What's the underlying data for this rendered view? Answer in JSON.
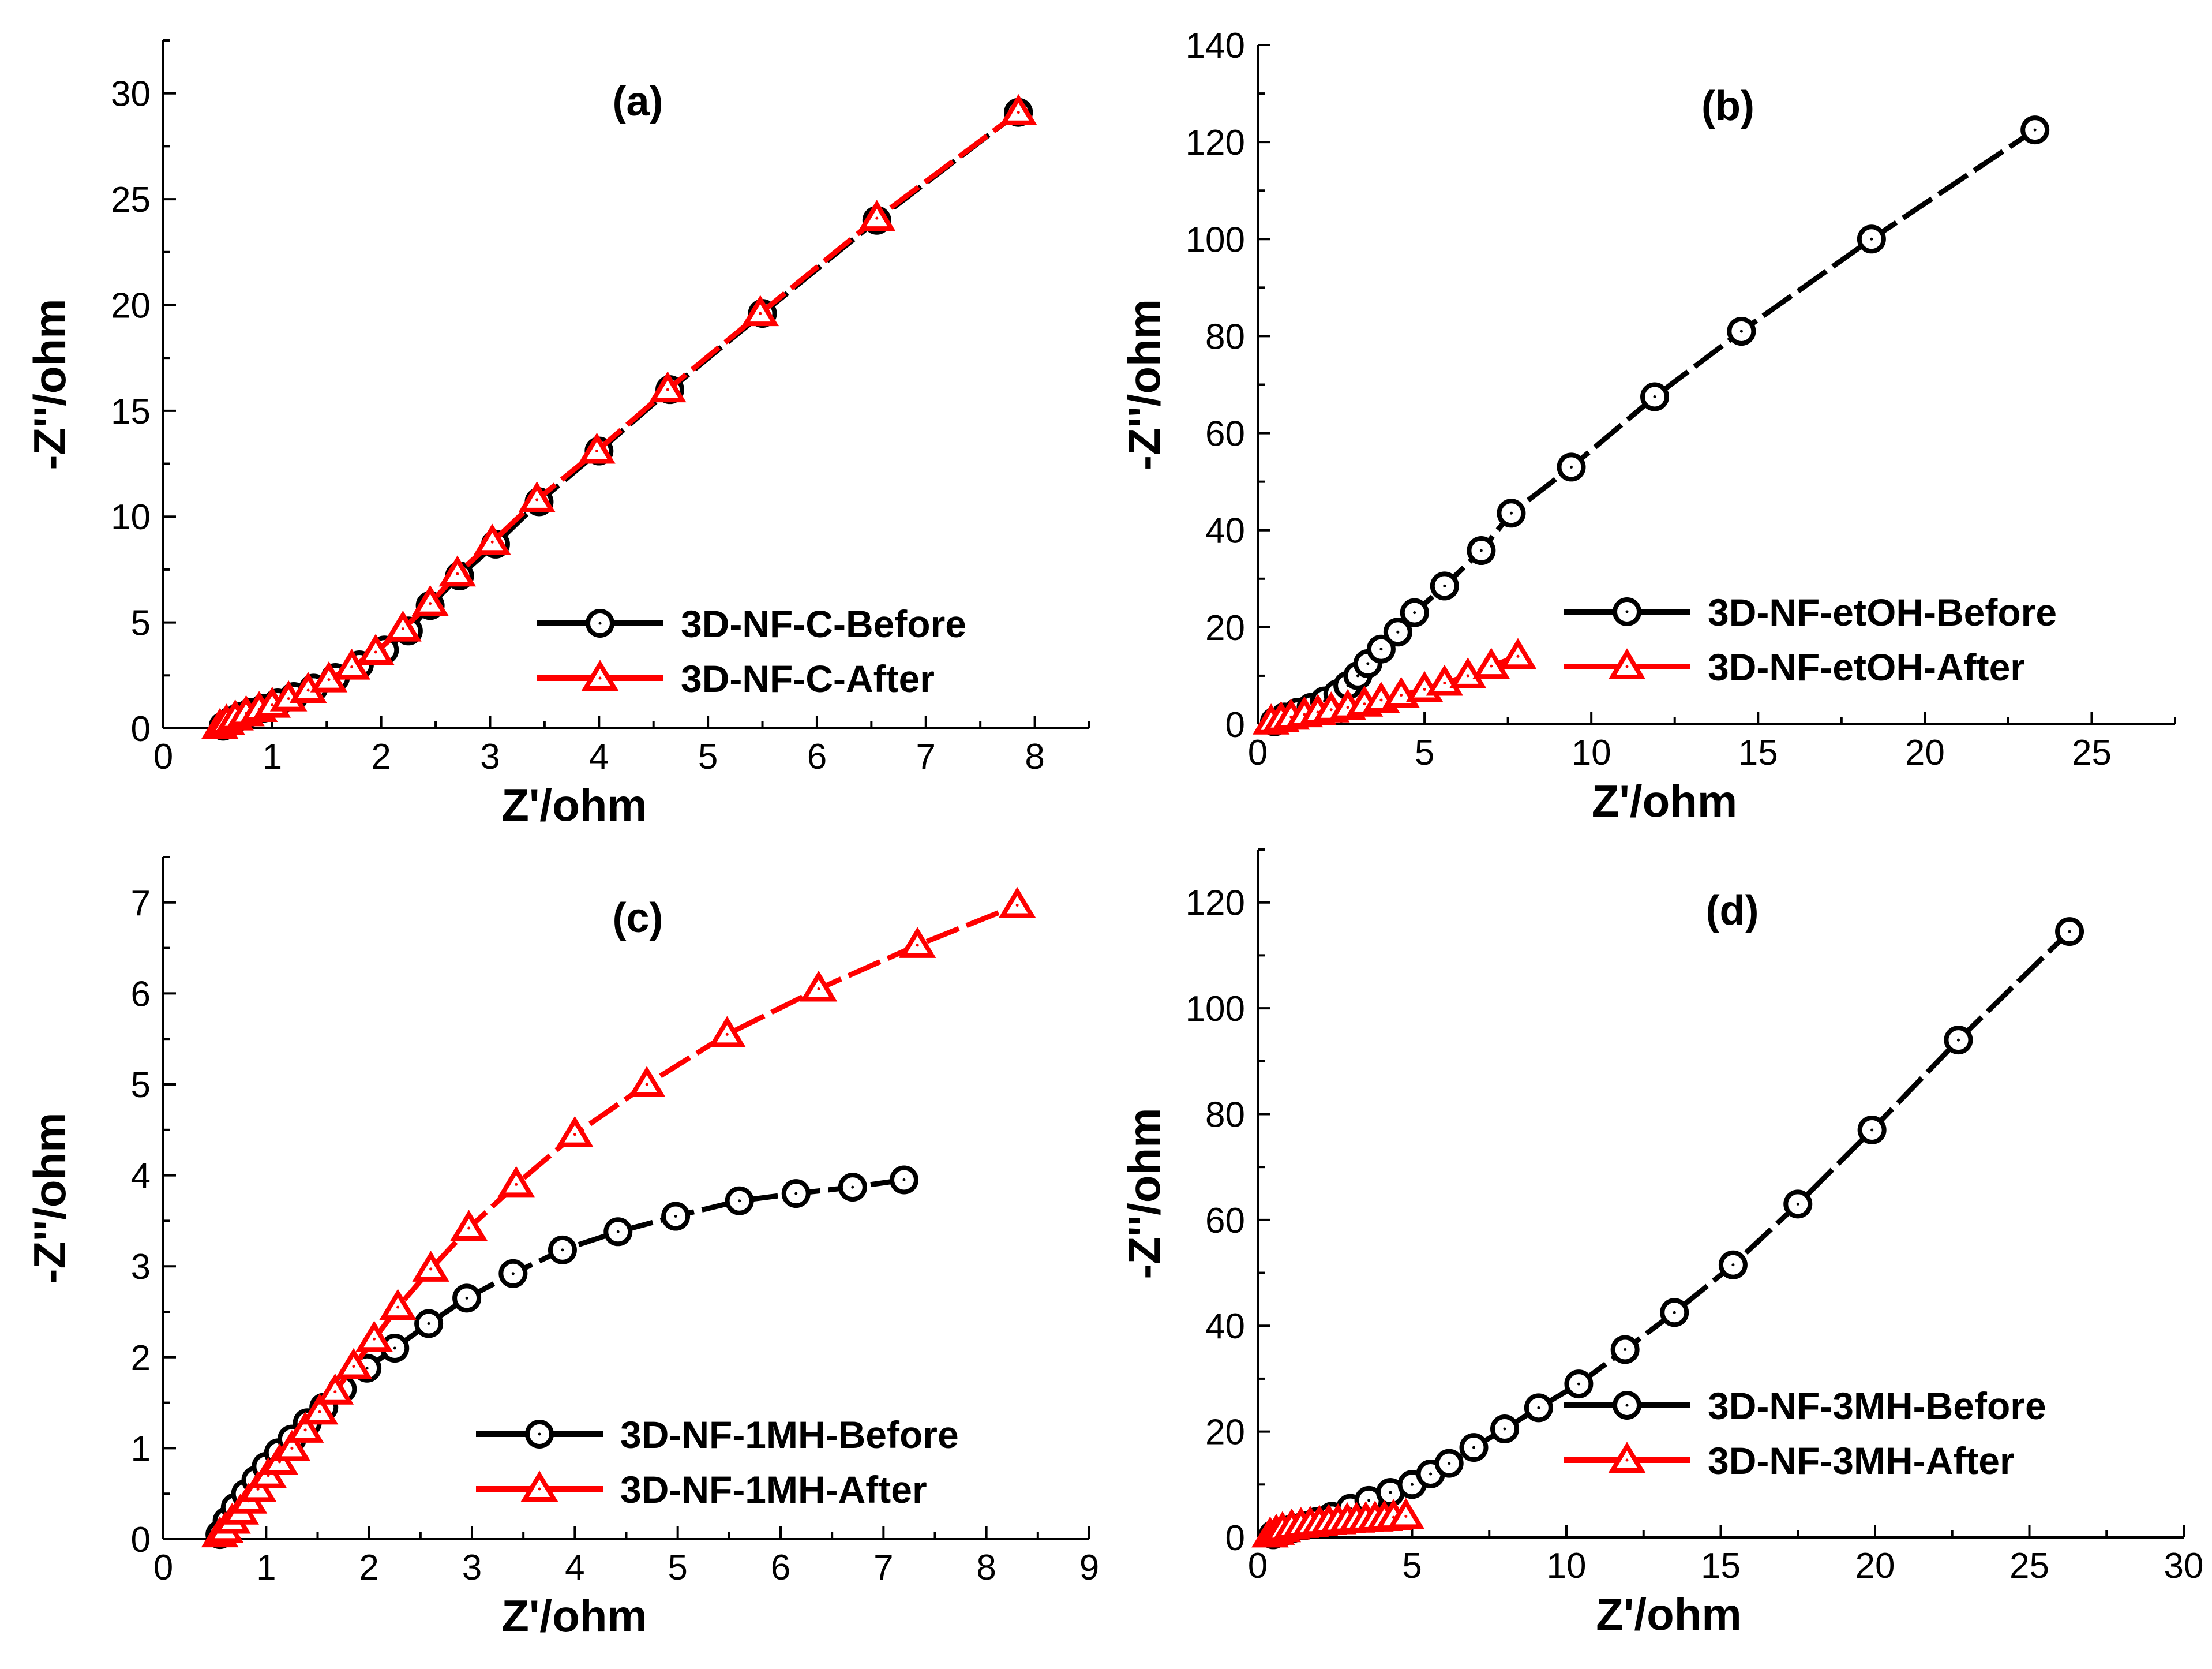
{
  "chart_data": [
    {
      "type": "line",
      "panel_label": "(a)",
      "xlabel": "Z'/ohm",
      "ylabel": "-Z''/ohm",
      "xlim": [
        0,
        8.5
      ],
      "ylim": [
        0,
        32.5
      ],
      "xticks": [
        0,
        1,
        2,
        3,
        4,
        5,
        6,
        7,
        8
      ],
      "yticks": [
        0,
        5,
        10,
        15,
        20,
        25,
        30
      ],
      "legend_position": "bottom-right",
      "series": [
        {
          "name": "3D-NF-C-Before",
          "color": "#000000",
          "marker": "circle",
          "points": [
            [
              0.55,
              0.1
            ],
            [
              0.62,
              0.35
            ],
            [
              0.7,
              0.55
            ],
            [
              0.8,
              0.75
            ],
            [
              0.92,
              0.95
            ],
            [
              1.05,
              1.2
            ],
            [
              1.2,
              1.5
            ],
            [
              1.38,
              1.9
            ],
            [
              1.58,
              2.4
            ],
            [
              1.8,
              3.0
            ],
            [
              2.03,
              3.7
            ],
            [
              2.25,
              4.6
            ],
            [
              2.45,
              5.8
            ],
            [
              2.72,
              7.2
            ],
            [
              3.05,
              8.7
            ],
            [
              3.45,
              10.7
            ],
            [
              4.0,
              13.1
            ],
            [
              4.65,
              16.0
            ],
            [
              5.5,
              19.6
            ],
            [
              6.55,
              24.0
            ],
            [
              7.85,
              29.1
            ]
          ]
        },
        {
          "name": "3D-NF-C-After",
          "color": "#ff0000",
          "marker": "triangle",
          "points": [
            [
              0.52,
              0.1
            ],
            [
              0.58,
              0.3
            ],
            [
              0.66,
              0.5
            ],
            [
              0.76,
              0.7
            ],
            [
              0.88,
              0.9
            ],
            [
              1.0,
              1.1
            ],
            [
              1.15,
              1.4
            ],
            [
              1.33,
              1.8
            ],
            [
              1.52,
              2.3
            ],
            [
              1.73,
              2.9
            ],
            [
              1.95,
              3.6
            ],
            [
              2.2,
              4.7
            ],
            [
              2.45,
              5.9
            ],
            [
              2.7,
              7.3
            ],
            [
              3.02,
              8.8
            ],
            [
              3.43,
              10.8
            ],
            [
              3.98,
              13.1
            ],
            [
              4.63,
              16.0
            ],
            [
              5.48,
              19.6
            ],
            [
              6.55,
              24.1
            ],
            [
              7.85,
              29.1
            ]
          ]
        }
      ]
    },
    {
      "type": "line",
      "panel_label": "(b)",
      "xlabel": "Z'/ohm",
      "ylabel": "-Z''/ohm",
      "xlim": [
        0,
        27.5
      ],
      "ylim": [
        0,
        140
      ],
      "xticks": [
        0,
        5,
        10,
        15,
        20,
        25
      ],
      "yticks": [
        0,
        20,
        40,
        60,
        80,
        100,
        120,
        140
      ],
      "legend_position": "bottom-right",
      "series": [
        {
          "name": "3D-NF-etOH-Before",
          "color": "#000000",
          "marker": "circle",
          "points": [
            [
              0.5,
              0.5
            ],
            [
              0.8,
              1.5
            ],
            [
              1.2,
              2.5
            ],
            [
              1.6,
              3.5
            ],
            [
              2.0,
              4.8
            ],
            [
              2.4,
              6.3
            ],
            [
              2.7,
              8.0
            ],
            [
              3.0,
              10.0
            ],
            [
              3.3,
              12.5
            ],
            [
              3.7,
              15.5
            ],
            [
              4.2,
              19.0
            ],
            [
              4.7,
              23.0
            ],
            [
              5.6,
              28.5
            ],
            [
              6.7,
              35.8
            ],
            [
              7.6,
              43.5
            ],
            [
              9.4,
              53.0
            ],
            [
              11.9,
              67.5
            ],
            [
              14.5,
              81.0
            ],
            [
              18.4,
              100.0
            ],
            [
              23.3,
              122.5
            ]
          ]
        },
        {
          "name": "3D-NF-etOH-After",
          "color": "#ff0000",
          "marker": "triangle",
          "points": [
            [
              0.4,
              0.5
            ],
            [
              0.7,
              1.0
            ],
            [
              1.0,
              1.5
            ],
            [
              1.4,
              2.0
            ],
            [
              1.8,
              2.5
            ],
            [
              2.2,
              3.0
            ],
            [
              2.7,
              3.5
            ],
            [
              3.2,
              4.2
            ],
            [
              3.7,
              5.0
            ],
            [
              4.3,
              6.0
            ],
            [
              5.0,
              7.2
            ],
            [
              5.6,
              8.5
            ],
            [
              6.3,
              10.0
            ],
            [
              7.0,
              12.0
            ],
            [
              7.8,
              14.0
            ]
          ]
        }
      ]
    },
    {
      "type": "line",
      "panel_label": "(c)",
      "xlabel": "Z'/ohm",
      "ylabel": "-Z''/ohm",
      "xlim": [
        0,
        9
      ],
      "ylim": [
        0,
        7.5
      ],
      "xticks": [
        0,
        1,
        2,
        3,
        4,
        5,
        6,
        7,
        8,
        9
      ],
      "yticks": [
        0,
        1,
        2,
        3,
        4,
        5,
        6,
        7
      ],
      "legend_position": "bottom-right",
      "series": [
        {
          "name": "3D-NF-1MH-Before",
          "color": "#000000",
          "marker": "circle",
          "points": [
            [
              0.55,
              0.05
            ],
            [
              0.62,
              0.2
            ],
            [
              0.7,
              0.35
            ],
            [
              0.8,
              0.5
            ],
            [
              0.9,
              0.65
            ],
            [
              1.0,
              0.8
            ],
            [
              1.12,
              0.95
            ],
            [
              1.25,
              1.1
            ],
            [
              1.4,
              1.28
            ],
            [
              1.56,
              1.45
            ],
            [
              1.74,
              1.65
            ],
            [
              1.98,
              1.88
            ],
            [
              2.25,
              2.1
            ],
            [
              2.58,
              2.37
            ],
            [
              2.95,
              2.65
            ],
            [
              3.4,
              2.92
            ],
            [
              3.88,
              3.18
            ],
            [
              4.42,
              3.38
            ],
            [
              4.98,
              3.55
            ],
            [
              5.6,
              3.72
            ],
            [
              6.15,
              3.8
            ],
            [
              6.7,
              3.87
            ],
            [
              7.2,
              3.95
            ]
          ]
        },
        {
          "name": "3D-NF-1MH-After",
          "color": "#ff0000",
          "marker": "triangle",
          "points": [
            [
              0.55,
              0.05
            ],
            [
              0.6,
              0.1
            ],
            [
              0.67,
              0.2
            ],
            [
              0.75,
              0.3
            ],
            [
              0.83,
              0.42
            ],
            [
              0.92,
              0.55
            ],
            [
              1.02,
              0.7
            ],
            [
              1.13,
              0.85
            ],
            [
              1.25,
              1.0
            ],
            [
              1.38,
              1.2
            ],
            [
              1.52,
              1.4
            ],
            [
              1.67,
              1.62
            ],
            [
              1.85,
              1.9
            ],
            [
              2.05,
              2.2
            ],
            [
              2.28,
              2.55
            ],
            [
              2.6,
              2.97
            ],
            [
              2.97,
              3.42
            ],
            [
              3.43,
              3.9
            ],
            [
              4.0,
              4.45
            ],
            [
              4.7,
              5.0
            ],
            [
              5.48,
              5.55
            ],
            [
              6.37,
              6.05
            ],
            [
              7.33,
              6.53
            ],
            [
              8.3,
              6.97
            ]
          ]
        }
      ]
    },
    {
      "type": "line",
      "panel_label": "(d)",
      "xlabel": "Z'/ohm",
      "ylabel": "-Z''/ohm",
      "xlim": [
        0,
        30
      ],
      "ylim": [
        0,
        130
      ],
      "xticks": [
        0,
        5,
        10,
        15,
        20,
        25,
        30
      ],
      "yticks": [
        0,
        20,
        40,
        60,
        80,
        100,
        120
      ],
      "legend_position": "bottom-right",
      "series": [
        {
          "name": "3D-NF-3MH-Before",
          "color": "#000000",
          "marker": "circle",
          "points": [
            [
              0.5,
              0.5
            ],
            [
              0.8,
              1.0
            ],
            [
              1.1,
              1.6
            ],
            [
              1.5,
              2.2
            ],
            [
              1.9,
              3.0
            ],
            [
              2.4,
              4.0
            ],
            [
              3.0,
              5.5
            ],
            [
              3.6,
              7.0
            ],
            [
              4.3,
              8.5
            ],
            [
              5.0,
              10.0
            ],
            [
              5.6,
              12.0
            ],
            [
              6.2,
              14.0
            ],
            [
              7.0,
              17.0
            ],
            [
              8.0,
              20.5
            ],
            [
              9.1,
              24.5
            ],
            [
              10.4,
              29.0
            ],
            [
              11.9,
              35.5
            ],
            [
              13.5,
              42.5
            ],
            [
              15.4,
              51.5
            ],
            [
              17.5,
              63.0
            ],
            [
              19.9,
              77.0
            ],
            [
              22.7,
              94.0
            ],
            [
              26.3,
              114.5
            ]
          ]
        },
        {
          "name": "3D-NF-3MH-After",
          "color": "#ff0000",
          "marker": "triangle",
          "points": [
            [
              0.4,
              0.5
            ],
            [
              0.6,
              1.0
            ],
            [
              0.8,
              1.5
            ],
            [
              1.1,
              2.0
            ],
            [
              1.4,
              2.3
            ],
            [
              1.7,
              2.5
            ],
            [
              2.0,
              2.7
            ],
            [
              2.3,
              2.9
            ],
            [
              2.6,
              3.0
            ],
            [
              2.9,
              3.2
            ],
            [
              3.2,
              3.3
            ],
            [
              3.5,
              3.4
            ],
            [
              3.8,
              3.5
            ],
            [
              4.1,
              3.6
            ],
            [
              4.4,
              3.8
            ],
            [
              4.8,
              4.0
            ]
          ]
        }
      ]
    }
  ]
}
